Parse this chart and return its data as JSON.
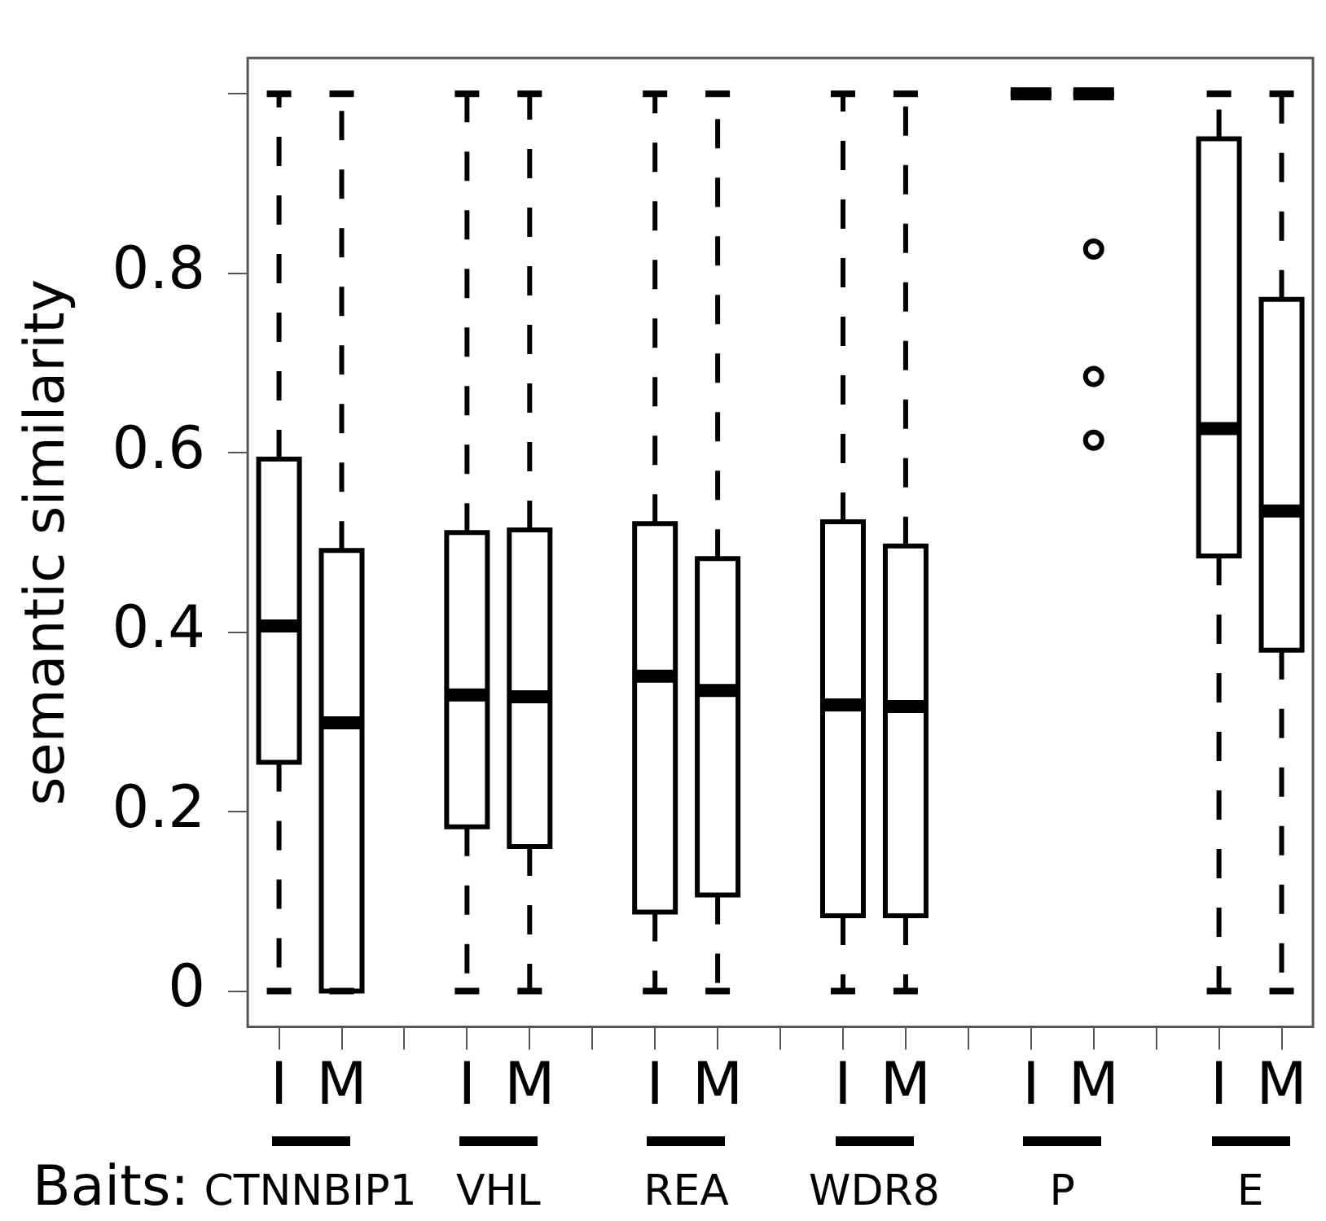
{
  "chart_data": {
    "type": "box",
    "ylabel": "semantic similarity",
    "categories": [
      "I",
      "M",
      null,
      "I",
      "M",
      null,
      "I",
      "M",
      null,
      "I",
      "M",
      null,
      "I",
      "M",
      null,
      "I",
      "M"
    ],
    "boxes": [
      {
        "low": 0,
        "q1": 0.255,
        "median": 0.407,
        "q3": 0.593,
        "high": 1
      },
      {
        "low": 0,
        "q1": 0,
        "median": 0.299,
        "q3": 0.491,
        "high": 1
      },
      null,
      {
        "low": 0,
        "q1": 0.183,
        "median": 0.33,
        "q3": 0.511,
        "high": 1
      },
      {
        "low": 0,
        "q1": 0.161,
        "median": 0.328,
        "q3": 0.514,
        "high": 1
      },
      null,
      {
        "low": 0,
        "q1": 0.088,
        "median": 0.351,
        "q3": 0.521,
        "high": 1
      },
      {
        "low": 0,
        "q1": 0.107,
        "median": 0.335,
        "q3": 0.482,
        "high": 1
      },
      null,
      {
        "low": 0,
        "q1": 0.084,
        "median": 0.319,
        "q3": 0.523,
        "high": 1
      },
      {
        "low": 0,
        "q1": 0.084,
        "median": 0.317,
        "q3": 0.496,
        "high": 1
      },
      null,
      {
        "low": 1,
        "q1": 1,
        "median": 1,
        "q3": 1,
        "high": 1
      },
      {
        "low": 1,
        "q1": 1,
        "median": 1,
        "q3": 1,
        "high": 1,
        "outliers": [
          0.827,
          0.685,
          0.614
        ]
      },
      null,
      {
        "low": 0,
        "q1": 0.485,
        "median": 0.627,
        "q3": 0.95,
        "high": 1
      },
      {
        "low": 0,
        "q1": 0.38,
        "median": 0.535,
        "q3": 0.771,
        "high": 1
      }
    ],
    "ylim": [
      -0.04,
      1.04
    ],
    "yticks": [
      0,
      0.2,
      0.4,
      0.6,
      0.8,
      {
        "value": 1,
        "label": null
      }
    ],
    "annotations": [
      "Baits:",
      "CTNNBIP1",
      "VHL",
      "REA",
      "WDR8",
      "P",
      "E"
    ],
    "grid": false,
    "legend": false
  }
}
